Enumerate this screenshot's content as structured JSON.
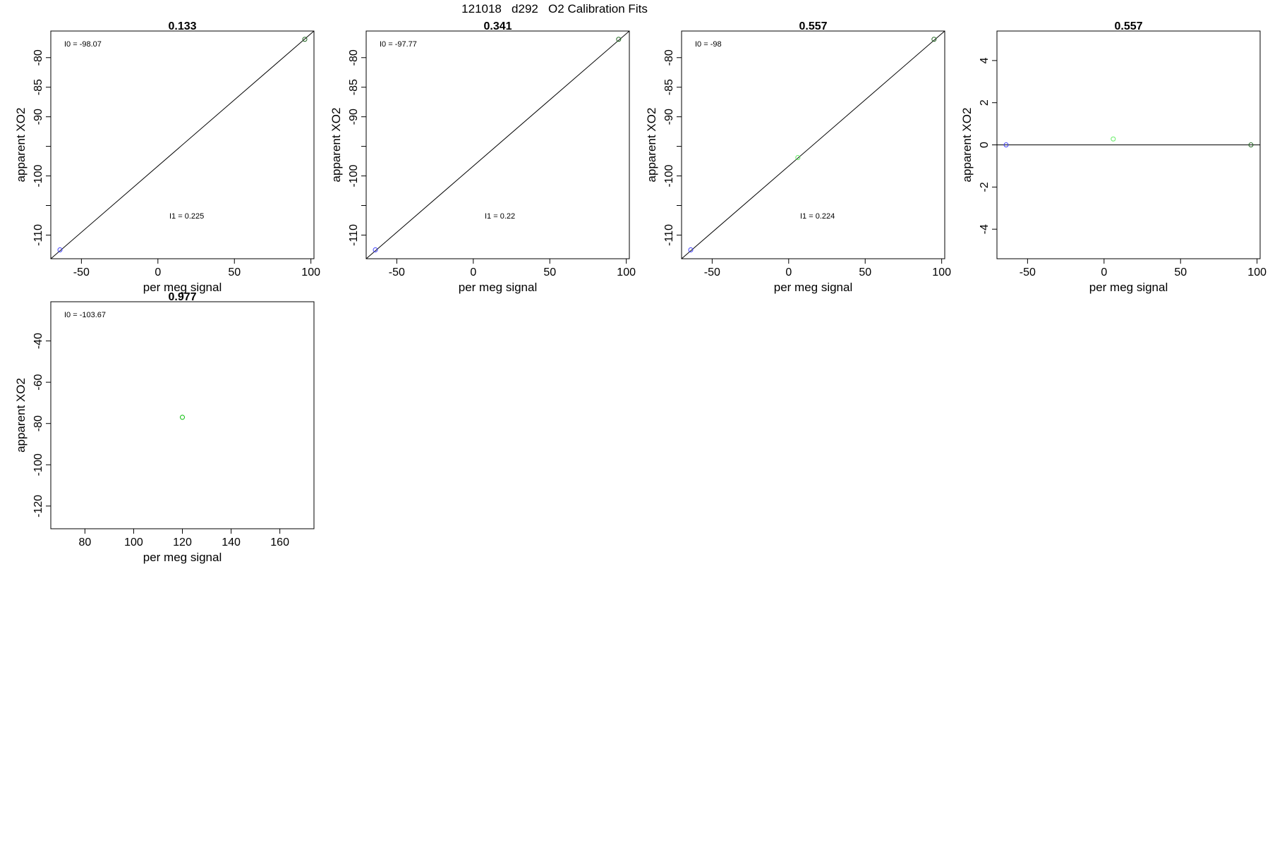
{
  "figure_title": "121018   d292   O2 Calibration Fits",
  "colors": {
    "frame": "#000000",
    "blue": "#4040ff",
    "green": "#00bb00",
    "light_green": "#66ee66",
    "dark_green": "#226622",
    "line": "#000000"
  },
  "chart_data": [
    {
      "type": "scatter",
      "title": "0.133",
      "xlabel": "per meg signal",
      "ylabel": "apparent XO2",
      "xlim": [
        -70,
        102
      ],
      "ylim": [
        -114,
        -75.5
      ],
      "xticks": [
        -50,
        0,
        50,
        100
      ],
      "yticks": [
        -80,
        -85,
        -90,
        -95,
        -100,
        -105,
        -110
      ],
      "ytick_labels": [
        "-80",
        "-85",
        "-90",
        "",
        "-100",
        "",
        "-110"
      ],
      "points": [
        {
          "x": -64,
          "y": -112.5,
          "color": "#4040ff"
        },
        {
          "x": 96,
          "y": -76.9,
          "color": "#226622"
        }
      ],
      "fit_line": [
        [
          -70,
          -114
        ],
        [
          102,
          -75.5
        ]
      ],
      "annotations": [
        {
          "label": "I0 = ",
          "value": "-98.07",
          "pos": "top-left"
        },
        {
          "label": "I1 = ",
          "value": "0.225",
          "pos": "center"
        }
      ]
    },
    {
      "type": "scatter",
      "title": "0.341",
      "xlabel": "per meg signal",
      "ylabel": "apparent XO2",
      "xlim": [
        -70,
        102
      ],
      "ylim": [
        -114,
        -75.5
      ],
      "xticks": [
        -50,
        0,
        50,
        100
      ],
      "yticks": [
        -80,
        -85,
        -90,
        -95,
        -100,
        -105,
        -110
      ],
      "ytick_labels": [
        "-80",
        "-85",
        "-90",
        "",
        "-100",
        "",
        "-110"
      ],
      "points": [
        {
          "x": -64,
          "y": -112.5,
          "color": "#4040ff"
        },
        {
          "x": 95,
          "y": -76.9,
          "color": "#226622"
        }
      ],
      "fit_line": [
        [
          -70,
          -114
        ],
        [
          102,
          -75.5
        ]
      ],
      "annotations": [
        {
          "label": "I0 = ",
          "value": "-97.77",
          "pos": "top-left"
        },
        {
          "label": "I1 = ",
          "value": "0.22",
          "pos": "center"
        }
      ]
    },
    {
      "type": "scatter",
      "title": "0.557",
      "xlabel": "per meg signal",
      "ylabel": "apparent XO2",
      "xlim": [
        -70,
        102
      ],
      "ylim": [
        -114,
        -75.5
      ],
      "xticks": [
        -50,
        0,
        50,
        100
      ],
      "yticks": [
        -80,
        -85,
        -90,
        -95,
        -100,
        -105,
        -110
      ],
      "ytick_labels": [
        "-80",
        "-85",
        "-90",
        "",
        "-100",
        "",
        "-110"
      ],
      "points": [
        {
          "x": -64,
          "y": -112.5,
          "color": "#4040ff"
        },
        {
          "x": 6,
          "y": -96.9,
          "color": "#66ee66"
        },
        {
          "x": 95,
          "y": -76.9,
          "color": "#226622"
        }
      ],
      "fit_line": [
        [
          -70,
          -114
        ],
        [
          102,
          -75.5
        ]
      ],
      "annotations": [
        {
          "label": "I0 = ",
          "value": "-98",
          "pos": "top-left"
        },
        {
          "label": "I1 = ",
          "value": "0.224",
          "pos": "center"
        }
      ]
    },
    {
      "type": "scatter",
      "title": "0.557",
      "xlabel": "per meg signal",
      "ylabel": "apparent XO2",
      "xlim": [
        -70,
        102
      ],
      "ylim": [
        -5.4,
        5.4
      ],
      "xticks": [
        -50,
        0,
        50,
        100
      ],
      "yticks": [
        4,
        2,
        0,
        -2,
        -4
      ],
      "ytick_labels": [
        "4",
        "2",
        "0",
        "-2",
        "-4"
      ],
      "points": [
        {
          "x": -64,
          "y": 0,
          "color": "#4040ff"
        },
        {
          "x": 6,
          "y": 0.28,
          "color": "#66ee66"
        },
        {
          "x": 96,
          "y": 0,
          "color": "#226622"
        }
      ],
      "fit_line": [
        [
          -70,
          0
        ],
        [
          102,
          0
        ]
      ],
      "annotations": []
    },
    {
      "type": "scatter",
      "title": "0.977",
      "xlabel": "per meg signal",
      "ylabel": "apparent XO2",
      "xlim": [
        66,
        174
      ],
      "ylim": [
        -131,
        -21
      ],
      "xticks": [
        80,
        100,
        120,
        140,
        160
      ],
      "yticks": [
        -40,
        -60,
        -80,
        -100,
        -120
      ],
      "ytick_labels": [
        "-40",
        "-60",
        "-80",
        "-100",
        "-120"
      ],
      "points": [
        {
          "x": 120,
          "y": -77,
          "color": "#00bb00"
        }
      ],
      "fit_line": null,
      "annotations": [
        {
          "label": "I0 = ",
          "value": "-103.67",
          "pos": "top-left"
        }
      ]
    }
  ]
}
